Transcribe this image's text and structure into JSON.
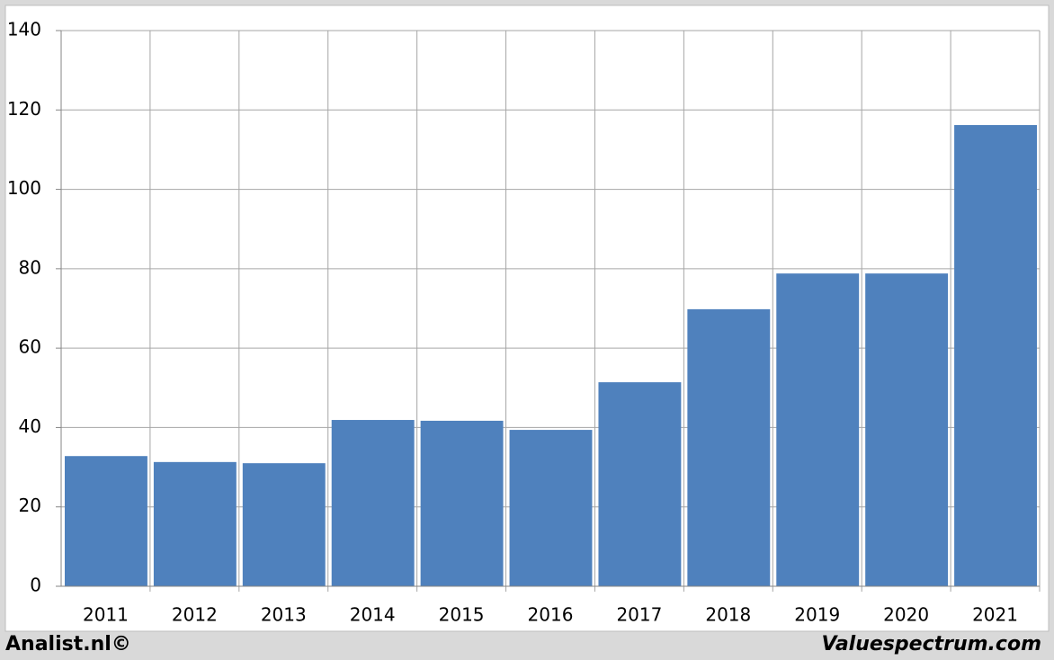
{
  "chart_data": {
    "type": "bar",
    "categories": [
      "2011",
      "2012",
      "2013",
      "2014",
      "2015",
      "2016",
      "2017",
      "2018",
      "2019",
      "2020",
      "2021"
    ],
    "values": [
      32.8,
      31.3,
      31.0,
      41.9,
      41.7,
      39.4,
      51.4,
      69.8,
      78.8,
      78.8,
      116.2
    ],
    "color": "#4f81bd",
    "ylim": [
      0,
      140
    ],
    "yticks": [
      0,
      20,
      40,
      60,
      80,
      100,
      120,
      140
    ],
    "grid": true,
    "footer_left": "Analist.nl©",
    "footer_right": "Valuespectrum.com"
  }
}
